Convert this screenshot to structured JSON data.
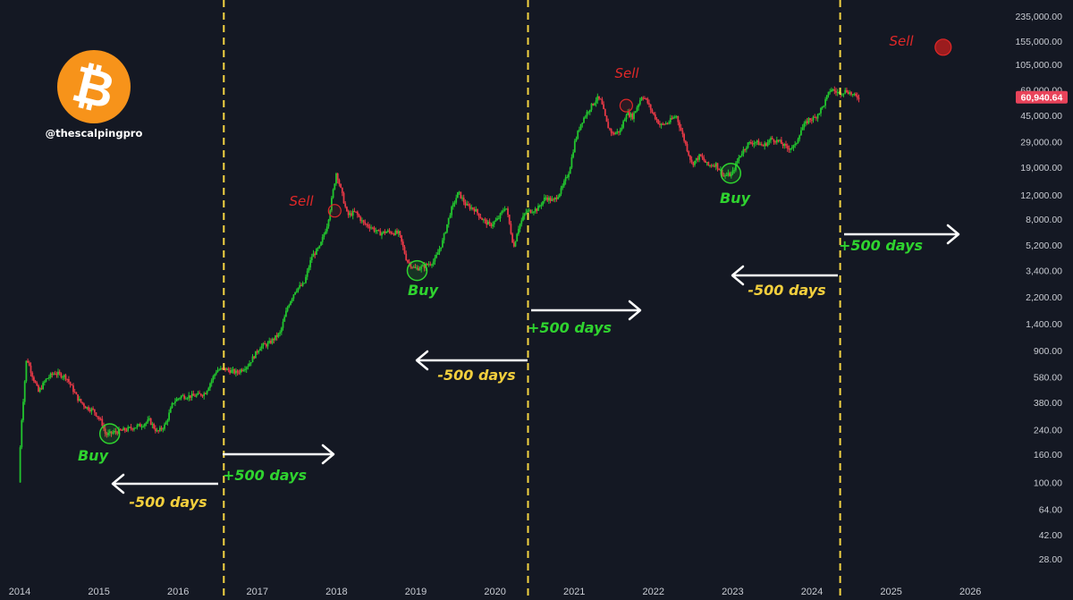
{
  "handle": "@thescalpingpro",
  "logo_icon": "bitcoin-logo",
  "colors": {
    "background": "#141823",
    "up_candle": "#22c52e",
    "down_candle": "#e63946",
    "halving_line": "#f5d442",
    "buy_text": "#2fd32f",
    "sell_text": "#e02828",
    "days_text": "#f2cf3d",
    "arrow": "#ffffff",
    "price_badge": "#e8435a",
    "logo": "#f7931a"
  },
  "chart_data": {
    "type": "candlestick",
    "scale": "log",
    "ylim": [
      22,
      280000
    ],
    "y_ticks": [
      "235,000.00",
      "155,000.00",
      "105,000.00",
      "69,000.00",
      "45,000.00",
      "29,000.00",
      "19,000.00",
      "12,000.00",
      "8,000.00",
      "5,200.00",
      "3,400.00",
      "2,200.00",
      "1,400.00",
      "900.00",
      "580.00",
      "380.00",
      "240.00",
      "160.00",
      "100.00",
      "64.00",
      "42.00",
      "28.00"
    ],
    "x_ticks": [
      "2014",
      "2015",
      "2016",
      "2017",
      "2018",
      "2019",
      "2020",
      "2021",
      "2022",
      "2023",
      "2024",
      "2025",
      "2026"
    ],
    "current_price": "60,940.64",
    "current_price_value": 60940.64,
    "price_path": [
      [
        2013.95,
        100
      ],
      [
        2013.98,
        250
      ],
      [
        2014.05,
        800
      ],
      [
        2014.12,
        600
      ],
      [
        2014.2,
        450
      ],
      [
        2014.3,
        560
      ],
      [
        2014.4,
        620
      ],
      [
        2014.55,
        580
      ],
      [
        2014.7,
        400
      ],
      [
        2014.8,
        350
      ],
      [
        2014.9,
        330
      ],
      [
        2015.0,
        270
      ],
      [
        2015.05,
        220
      ],
      [
        2015.15,
        230
      ],
      [
        2015.3,
        240
      ],
      [
        2015.5,
        260
      ],
      [
        2015.6,
        280
      ],
      [
        2015.7,
        230
      ],
      [
        2015.8,
        260
      ],
      [
        2015.9,
        380
      ],
      [
        2016.0,
        420
      ],
      [
        2016.15,
        420
      ],
      [
        2016.3,
        440
      ],
      [
        2016.45,
        650
      ],
      [
        2016.55,
        660
      ],
      [
        2016.7,
        620
      ],
      [
        2016.85,
        710
      ],
      [
        2017.0,
        960
      ],
      [
        2017.1,
        1000
      ],
      [
        2017.25,
        1200
      ],
      [
        2017.35,
        1900
      ],
      [
        2017.45,
        2500
      ],
      [
        2017.55,
        2700
      ],
      [
        2017.65,
        4300
      ],
      [
        2017.75,
        5000
      ],
      [
        2017.85,
        7500
      ],
      [
        2017.9,
        11000
      ],
      [
        2017.96,
        17500
      ],
      [
        2018.05,
        11000
      ],
      [
        2018.1,
        8500
      ],
      [
        2018.2,
        9000
      ],
      [
        2018.3,
        7500
      ],
      [
        2018.4,
        7000
      ],
      [
        2018.5,
        6300
      ],
      [
        2018.6,
        6500
      ],
      [
        2018.75,
        6300
      ],
      [
        2018.85,
        4000
      ],
      [
        2018.95,
        3500
      ],
      [
        2019.05,
        3600
      ],
      [
        2019.2,
        4000
      ],
      [
        2019.3,
        5500
      ],
      [
        2019.4,
        9000
      ],
      [
        2019.5,
        12500
      ],
      [
        2019.6,
        10000
      ],
      [
        2019.7,
        9500
      ],
      [
        2019.8,
        8000
      ],
      [
        2019.9,
        7200
      ],
      [
        2020.0,
        8000
      ],
      [
        2020.1,
        10000
      ],
      [
        2020.2,
        5000
      ],
      [
        2020.25,
        6800
      ],
      [
        2020.35,
        9000
      ],
      [
        2020.5,
        9500
      ],
      [
        2020.6,
        11500
      ],
      [
        2020.7,
        10800
      ],
      [
        2020.8,
        13000
      ],
      [
        2020.9,
        18000
      ],
      [
        2020.97,
        29000
      ],
      [
        2021.05,
        40000
      ],
      [
        2021.15,
        50000
      ],
      [
        2021.25,
        60000
      ],
      [
        2021.3,
        57000
      ],
      [
        2021.38,
        38000
      ],
      [
        2021.45,
        33000
      ],
      [
        2021.55,
        35000
      ],
      [
        2021.62,
        47000
      ],
      [
        2021.7,
        44000
      ],
      [
        2021.82,
        63000
      ],
      [
        2021.88,
        57000
      ],
      [
        2021.95,
        47000
      ],
      [
        2022.05,
        38000
      ],
      [
        2022.15,
        40000
      ],
      [
        2022.25,
        45000
      ],
      [
        2022.35,
        30000
      ],
      [
        2022.45,
        20000
      ],
      [
        2022.55,
        23000
      ],
      [
        2022.65,
        19500
      ],
      [
        2022.75,
        20000
      ],
      [
        2022.85,
        16500
      ],
      [
        2022.95,
        16800
      ],
      [
        2023.05,
        23000
      ],
      [
        2023.15,
        28000
      ],
      [
        2023.25,
        29000
      ],
      [
        2023.35,
        27000
      ],
      [
        2023.45,
        30500
      ],
      [
        2023.55,
        29000
      ],
      [
        2023.65,
        26000
      ],
      [
        2023.75,
        27000
      ],
      [
        2023.82,
        35000
      ],
      [
        2023.92,
        42000
      ],
      [
        2024.0,
        43000
      ],
      [
        2024.1,
        52000
      ],
      [
        2024.2,
        70000
      ],
      [
        2024.3,
        65000
      ],
      [
        2024.4,
        68000
      ],
      [
        2024.5,
        62000
      ],
      [
        2024.55,
        60940
      ]
    ]
  },
  "halvings": [
    2016.52,
    2020.36,
    2024.3
  ],
  "annotations": {
    "buy_label": "Buy",
    "sell_label": "Sell",
    "minus_days": "-500 days",
    "plus_days": "+500 days",
    "buy_points": [
      {
        "x": 2015.08,
        "price": 225
      },
      {
        "x": 2018.96,
        "price": 3400
      },
      {
        "x": 2022.92,
        "price": 17200
      }
    ],
    "sell_points": [
      {
        "x": 2017.92,
        "price": 9200
      },
      {
        "x": 2021.6,
        "price": 53000
      },
      {
        "x": 2025.6,
        "price": 140000
      }
    ]
  }
}
